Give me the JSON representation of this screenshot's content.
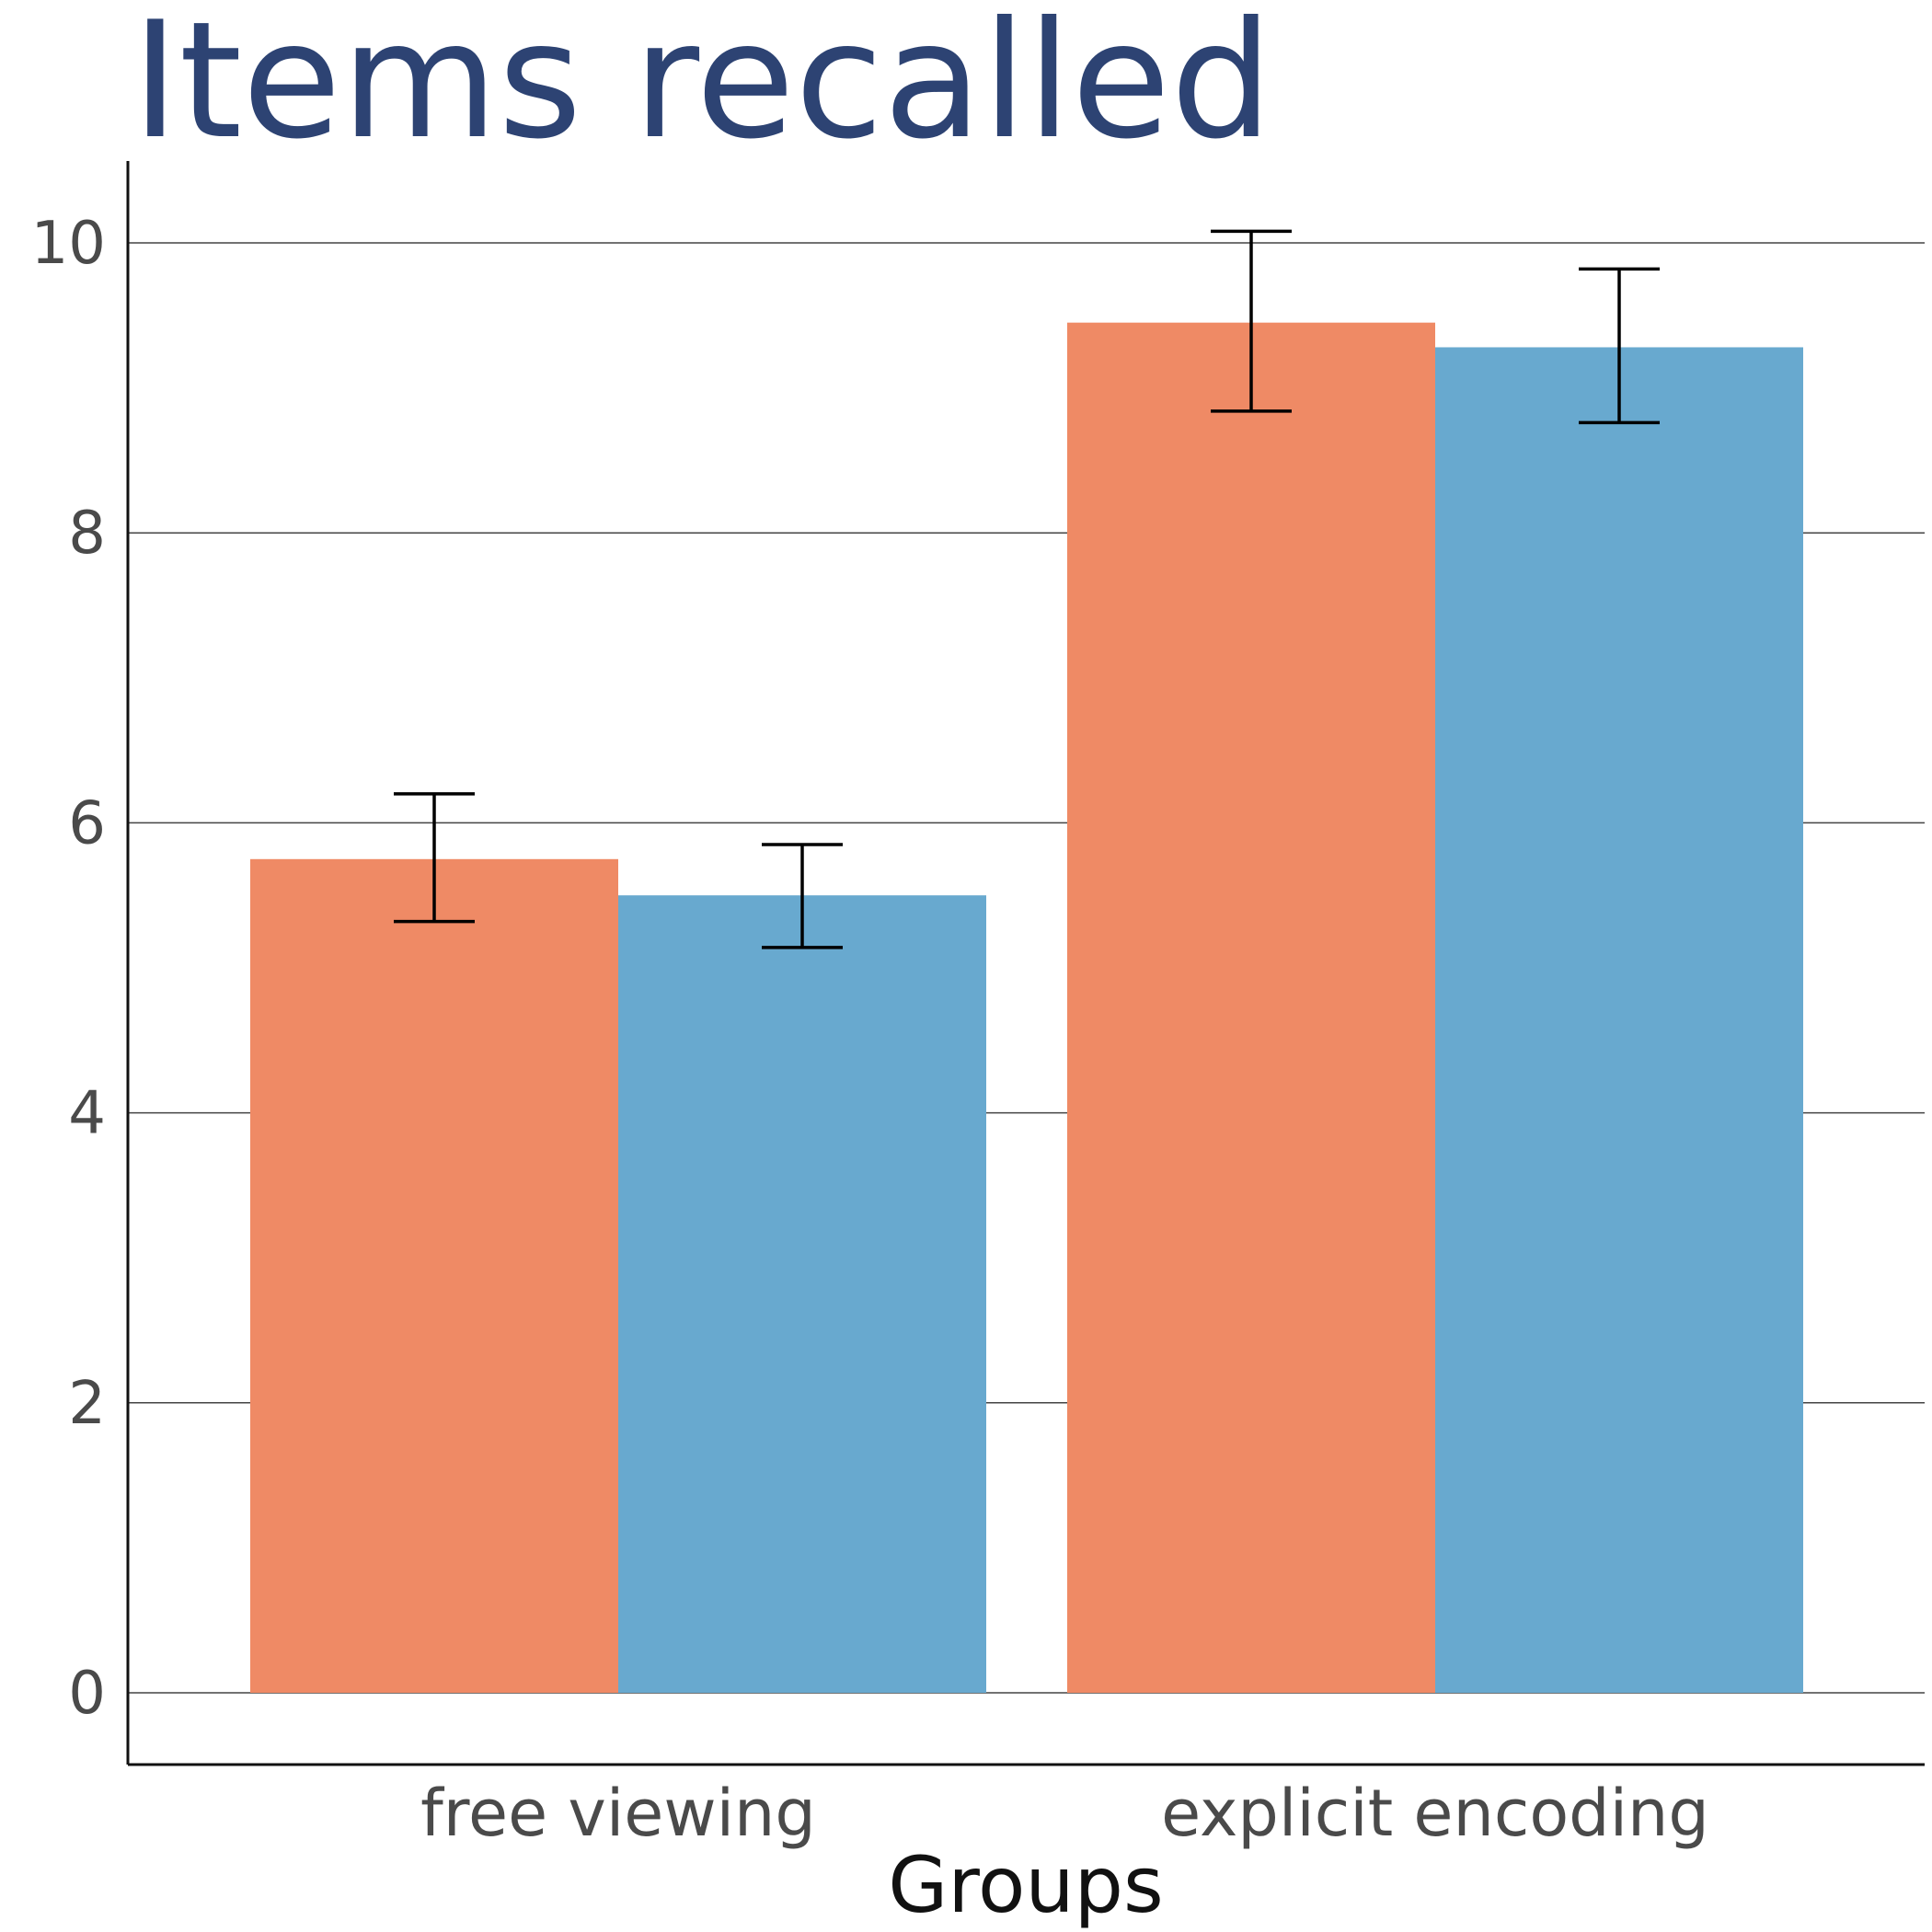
{
  "chart_data": {
    "type": "bar",
    "title": "Items recalled",
    "xlabel": "Groups",
    "ylabel": "",
    "categories": [
      "free viewing",
      "explicit encoding"
    ],
    "series": [
      {
        "values": [
          5.75,
          9.45
        ],
        "error_low": [
          5.32,
          8.84
        ],
        "error_high": [
          6.2,
          10.08
        ],
        "color": "#ef8a65"
      },
      {
        "values": [
          5.5,
          9.28
        ],
        "error_low": [
          5.14,
          8.76
        ],
        "error_high": [
          5.85,
          9.82
        ],
        "color": "#68a9cf"
      }
    ],
    "ylim": [
      -0.5,
      10.6
    ],
    "yticks": [
      0,
      2,
      4,
      6,
      8,
      10
    ],
    "grid": "horizontal",
    "legend": "none"
  }
}
